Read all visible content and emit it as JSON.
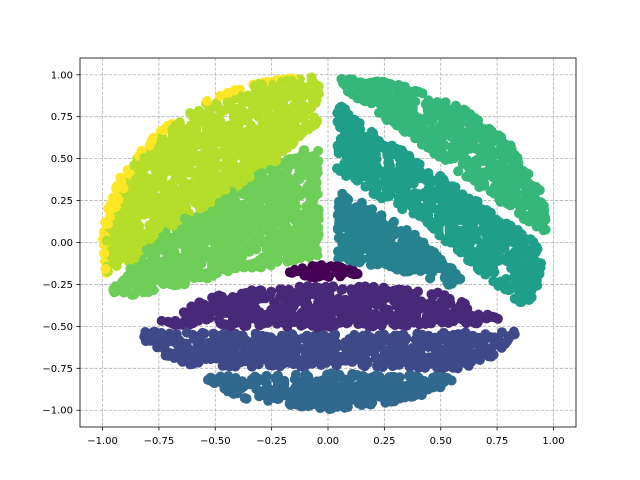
{
  "chart_data": {
    "type": "scatter",
    "title": "",
    "xlabel": "",
    "ylabel": "",
    "xlim": [
      -1.1,
      1.1
    ],
    "ylim": [
      -1.1,
      1.1
    ],
    "grid": true,
    "grid_style": "dashed",
    "legend": "none",
    "xticks": [
      -1.0,
      -0.75,
      -0.5,
      -0.25,
      0.0,
      0.25,
      0.5,
      0.75,
      1.0
    ],
    "yticks": [
      -1.0,
      -0.75,
      -0.5,
      -0.25,
      0.0,
      0.25,
      0.5,
      0.75,
      1.0
    ],
    "xtick_labels": [
      "−1.00",
      "−0.75",
      "−0.50",
      "−0.25",
      "0.00",
      "0.25",
      "0.50",
      "0.75",
      "1.00"
    ],
    "ytick_labels": [
      "−1.00",
      "−0.75",
      "−0.50",
      "−0.25",
      "0.00",
      "0.25",
      "0.50",
      "0.75",
      "1.00"
    ],
    "colormap": "viridis",
    "description_of_points": "points uniformly filling the unit disk, grouped into 10 clusters, colored by cluster",
    "clusters": [
      {
        "id": 0,
        "color": "#440154",
        "region": [
          {
            "x": -0.2,
            "y": -0.19
          },
          {
            "x": -0.1,
            "y": -0.13
          },
          {
            "x": 0.0,
            "y": -0.12
          },
          {
            "x": 0.1,
            "y": -0.14
          },
          {
            "x": 0.15,
            "y": -0.2
          },
          {
            "x": -0.05,
            "y": -0.21
          }
        ]
      },
      {
        "id": 1,
        "color": "#482878",
        "region": [
          {
            "x": -0.75,
            "y": -0.47
          },
          {
            "x": -0.5,
            "y": -0.31
          },
          {
            "x": -0.25,
            "y": -0.27
          },
          {
            "x": 0.0,
            "y": -0.25
          },
          {
            "x": 0.25,
            "y": -0.26
          },
          {
            "x": 0.5,
            "y": -0.3
          },
          {
            "x": 0.76,
            "y": -0.45
          },
          {
            "x": 0.76,
            "y": -0.48
          },
          {
            "x": 0.0,
            "y": -0.51
          },
          {
            "x": -0.75,
            "y": -0.49
          }
        ]
      },
      {
        "id": 2,
        "color": "#3e4989",
        "region": [
          {
            "x": -0.85,
            "y": -0.53
          },
          {
            "x": 0.0,
            "y": -0.55
          },
          {
            "x": 0.83,
            "y": -0.53
          },
          {
            "x": 0.82,
            "y": -0.63
          },
          {
            "x": 0.6,
            "y": -0.75
          },
          {
            "x": 0.0,
            "y": -0.74
          },
          {
            "x": -0.6,
            "y": -0.74
          },
          {
            "x": -0.8,
            "y": -0.63
          }
        ]
      },
      {
        "id": 3,
        "color": "#31688e",
        "region": [
          {
            "x": -0.56,
            "y": -0.8
          },
          {
            "x": 0.0,
            "y": -0.78
          },
          {
            "x": 0.6,
            "y": -0.8
          },
          {
            "x": 0.4,
            "y": -0.93
          },
          {
            "x": 0.0,
            "y": -1.0
          },
          {
            "x": -0.4,
            "y": -0.93
          }
        ]
      },
      {
        "id": 4,
        "color": "#26828e",
        "region": [
          {
            "x": 0.04,
            "y": 0.33
          },
          {
            "x": 0.2,
            "y": 0.2
          },
          {
            "x": 0.4,
            "y": 0.04
          },
          {
            "x": 0.6,
            "y": -0.22
          },
          {
            "x": 0.55,
            "y": -0.26
          },
          {
            "x": 0.3,
            "y": -0.16
          },
          {
            "x": 0.04,
            "y": -0.1
          }
        ]
      },
      {
        "id": 5,
        "color": "#1f9e89",
        "region": [
          {
            "x": 0.04,
            "y": 0.84
          },
          {
            "x": 0.2,
            "y": 0.66
          },
          {
            "x": 0.5,
            "y": 0.4
          },
          {
            "x": 0.9,
            "y": 0.02
          },
          {
            "x": 0.95,
            "y": -0.05
          },
          {
            "x": 0.93,
            "y": -0.35
          },
          {
            "x": 0.85,
            "y": -0.36
          },
          {
            "x": 0.7,
            "y": -0.2
          },
          {
            "x": 0.4,
            "y": 0.15
          },
          {
            "x": 0.04,
            "y": 0.4
          }
        ]
      },
      {
        "id": 6,
        "color": "#35b779",
        "region": [
          {
            "x": 0.04,
            "y": 0.99
          },
          {
            "x": 0.3,
            "y": 0.95
          },
          {
            "x": 0.6,
            "y": 0.8
          },
          {
            "x": 0.8,
            "y": 0.6
          },
          {
            "x": 0.95,
            "y": 0.3
          },
          {
            "x": 0.98,
            "y": 0.05
          },
          {
            "x": 0.93,
            "y": 0.08
          },
          {
            "x": 0.7,
            "y": 0.3
          },
          {
            "x": 0.4,
            "y": 0.6
          },
          {
            "x": 0.1,
            "y": 0.88
          }
        ]
      },
      {
        "id": 7,
        "color": "#6ece58",
        "region": [
          {
            "x": -0.04,
            "y": 0.6
          },
          {
            "x": -0.25,
            "y": 0.45
          },
          {
            "x": -0.5,
            "y": 0.25
          },
          {
            "x": -0.75,
            "y": 0.05
          },
          {
            "x": -0.97,
            "y": -0.3
          },
          {
            "x": -0.95,
            "y": -0.34
          },
          {
            "x": -0.6,
            "y": -0.24
          },
          {
            "x": -0.3,
            "y": -0.15
          },
          {
            "x": -0.04,
            "y": -0.08
          }
        ]
      },
      {
        "id": 8,
        "color": "#b5de2b",
        "region": [
          {
            "x": -0.04,
            "y": 1.0
          },
          {
            "x": -0.3,
            "y": 0.95
          },
          {
            "x": -0.6,
            "y": 0.8
          },
          {
            "x": -0.85,
            "y": 0.5
          },
          {
            "x": -0.99,
            "y": 0.0
          },
          {
            "x": -0.98,
            "y": -0.2
          },
          {
            "x": -0.85,
            "y": -0.1
          },
          {
            "x": -0.6,
            "y": 0.1
          },
          {
            "x": -0.3,
            "y": 0.4
          },
          {
            "x": -0.04,
            "y": 0.72
          }
        ]
      },
      {
        "id": 9,
        "color": "#fde725",
        "region": []
      }
    ]
  }
}
